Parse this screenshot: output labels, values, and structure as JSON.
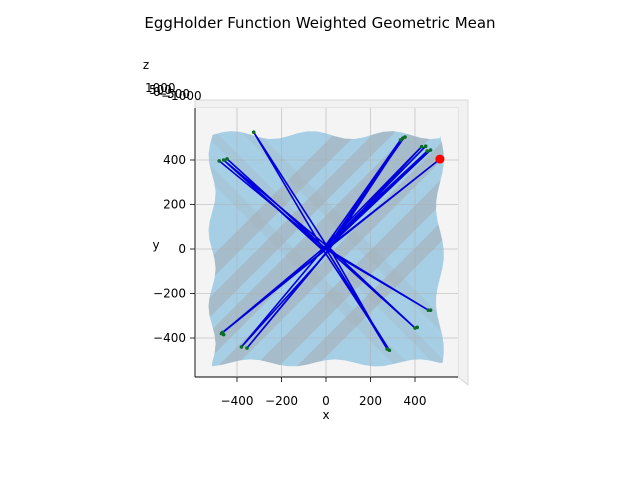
{
  "chart_data": {
    "type": "line",
    "title": "EggHolder Function Weighted Geometric Mean",
    "xlabel": "x",
    "ylabel": "y",
    "zlabel": "z",
    "x_ticks": [
      -400,
      -200,
      0,
      200,
      400
    ],
    "y_ticks": [
      -400,
      -200,
      0,
      200,
      400
    ],
    "x_tick_labels": [
      "−400",
      "−200",
      "0",
      "200",
      "400"
    ],
    "y_tick_labels": [
      "−400",
      "−200",
      "0",
      "200",
      "400"
    ],
    "z_tick_labels_overlapping": [
      "1000",
      "500",
      "0",
      "−500",
      "−1000"
    ],
    "xlim": [
      -512,
      512
    ],
    "ylim": [
      -512,
      512
    ],
    "view": "top-down",
    "grid": true,
    "surface_color": "#a6cfe6",
    "surface_band_color": "#a7adb3",
    "path_color": "#0000dd",
    "point_color": "#0b6b2a",
    "best_point_color": "#ff0000",
    "best_point": [
      512,
      404
    ],
    "cluster_points": [
      [
        -480,
        396
      ],
      [
        -460,
        400
      ],
      [
        -445,
        405
      ],
      [
        -470,
        -380
      ],
      [
        -465,
        -375
      ],
      [
        -460,
        -385
      ],
      [
        -380,
        -440
      ],
      [
        -355,
        -445
      ],
      [
        -325,
        525
      ],
      [
        335,
        490
      ],
      [
        345,
        498
      ],
      [
        355,
        503
      ],
      [
        430,
        460
      ],
      [
        448,
        462
      ],
      [
        455,
        440
      ],
      [
        470,
        445
      ],
      [
        400,
        -355
      ],
      [
        410,
        -352
      ],
      [
        460,
        -275
      ],
      [
        470,
        -275
      ],
      [
        275,
        -450
      ],
      [
        285,
        -455
      ]
    ],
    "series": [
      {
        "values": [
          [
            -480,
            396
          ],
          [
            0,
            0
          ],
          [
            350,
            500
          ],
          [
            20,
            30
          ],
          [
            -470,
            -380
          ],
          [
            -10,
            -10
          ],
          [
            430,
            460
          ],
          [
            0,
            20
          ],
          [
            -325,
            525
          ],
          [
            -20,
            10
          ],
          [
            460,
            -275
          ],
          [
            15,
            -5
          ],
          [
            -380,
            -440
          ],
          [
            10,
            25
          ],
          [
            455,
            440
          ],
          [
            0,
            0
          ],
          [
            285,
            -455
          ],
          [
            -15,
            0
          ],
          [
            -460,
            400
          ],
          [
            20,
            0
          ],
          [
            400,
            -355
          ],
          [
            -5,
            10
          ],
          [
            335,
            490
          ],
          [
            0,
            -20
          ],
          [
            -355,
            -445
          ],
          [
            30,
            20
          ],
          [
            512,
            404
          ],
          [
            0,
            0
          ],
          [
            -445,
            405
          ],
          [
            10,
            -10
          ],
          [
            345,
            498
          ],
          [
            -10,
            5
          ],
          [
            470,
            445
          ],
          [
            5,
            5
          ],
          [
            -465,
            -375
          ],
          [
            0,
            0
          ],
          [
            275,
            -450
          ],
          [
            10,
            15
          ],
          [
            448,
            462
          ],
          [
            -15,
            -5
          ],
          [
            -460,
            400
          ]
        ]
      }
    ]
  }
}
